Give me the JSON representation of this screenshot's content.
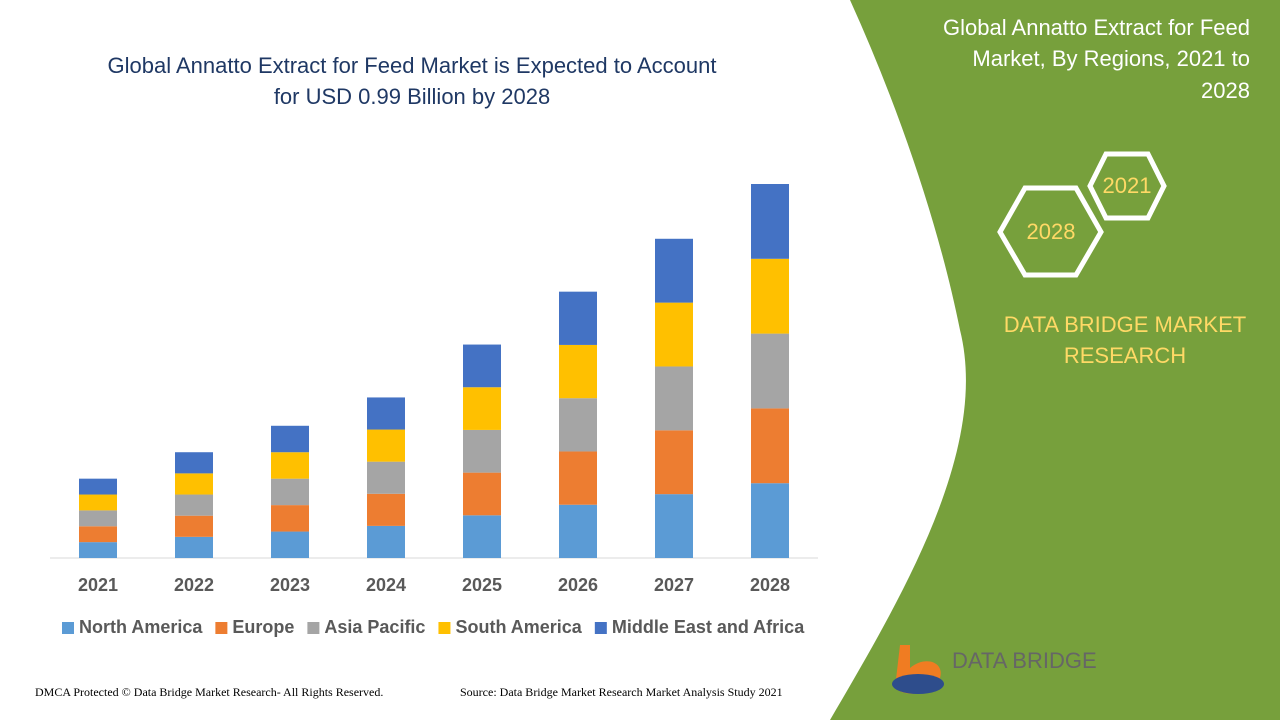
{
  "chart_data": {
    "type": "stacked_bar",
    "title": "Global Annatto Extract for Feed Market is Expected to Account for USD 0.99 Billion by 2028",
    "categories": [
      "2021",
      "2022",
      "2023",
      "2024",
      "2025",
      "2026",
      "2027",
      "2028"
    ],
    "series": [
      {
        "name": "North America",
        "color": "#5b9bd5",
        "values": [
          0.042,
          0.056,
          0.07,
          0.085,
          0.113,
          0.141,
          0.169,
          0.198
        ]
      },
      {
        "name": "Europe",
        "color": "#ed7d31",
        "values": [
          0.042,
          0.056,
          0.07,
          0.085,
          0.113,
          0.141,
          0.169,
          0.198
        ]
      },
      {
        "name": "Asia Pacific",
        "color": "#a5a5a5",
        "values": [
          0.042,
          0.056,
          0.07,
          0.085,
          0.113,
          0.141,
          0.169,
          0.198
        ]
      },
      {
        "name": "South America",
        "color": "#ffc000",
        "values": [
          0.042,
          0.056,
          0.07,
          0.085,
          0.113,
          0.141,
          0.169,
          0.198
        ]
      },
      {
        "name": "Middle East and Africa",
        "color": "#4472c4",
        "values": [
          0.042,
          0.056,
          0.07,
          0.085,
          0.113,
          0.141,
          0.169,
          0.198
        ]
      }
    ],
    "ylim": [
      0,
      0.99
    ],
    "legend": "bottom"
  },
  "panel": {
    "title": [
      "Global Annatto Extract for Feed",
      "Market, By Regions, 2021 to",
      "2028"
    ],
    "hex_left": "2028",
    "hex_right": "2021",
    "brand": [
      "DATA BRIDGE MARKET",
      "RESEARCH"
    ],
    "logo": "DATA BRIDGE"
  },
  "footer": {
    "copyright": "DMCA Protected © Data Bridge Market Research- All Rights Reserved.",
    "source": "Source: Data Bridge Market Research Market Analysis Study 2021"
  }
}
